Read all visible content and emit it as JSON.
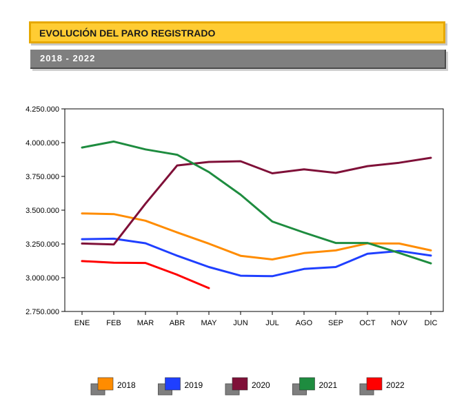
{
  "header": {
    "title": "EVOLUCIÓN DEL PARO REGISTRADO",
    "subtitle": "2018 - 2022"
  },
  "chart_data": {
    "type": "line",
    "title": "EVOLUCIÓN DEL PARO REGISTRADO",
    "subtitle": "2018 - 2022",
    "categories": [
      "ENE",
      "FEB",
      "MAR",
      "ABR",
      "MAY",
      "JUN",
      "JUL",
      "AGO",
      "SEP",
      "OCT",
      "NOV",
      "DIC"
    ],
    "ylim": [
      2750000,
      4250000
    ],
    "yticks": [
      2750000,
      3000000,
      3250000,
      3500000,
      3750000,
      4000000,
      4250000
    ],
    "ytick_labels": [
      "2.750.000",
      "3.000.000",
      "3.250.000",
      "3.500.000",
      "3.750.000",
      "4.000.000",
      "4.250.000"
    ],
    "grid": false,
    "legend_position": "bottom",
    "series": [
      {
        "name": "2018",
        "color": "#ff8c00",
        "values": [
          3476000,
          3471000,
          3422000,
          3335000,
          3252000,
          3162000,
          3135000,
          3182000,
          3202000,
          3254000,
          3253000,
          3202000
        ]
      },
      {
        "name": "2019",
        "color": "#1f3fff",
        "values": [
          3285000,
          3289000,
          3255000,
          3163000,
          3079000,
          3015000,
          3011000,
          3065000,
          3079000,
          3177000,
          3198000,
          3164000
        ]
      },
      {
        "name": "2020",
        "color": "#7f1038",
        "values": [
          3253000,
          3246000,
          3548000,
          3831000,
          3857000,
          3862000,
          3773000,
          3802000,
          3776000,
          3826000,
          3851000,
          3888000
        ]
      },
      {
        "name": "2021",
        "color": "#1e8c3f",
        "values": [
          3964000,
          4008000,
          3950000,
          3910000,
          3782000,
          3615000,
          3416000,
          3334000,
          3257000,
          3257000,
          3183000,
          3106000
        ]
      },
      {
        "name": "2022",
        "color": "#ff0000",
        "values": [
          3123000,
          3111000,
          3109000,
          3022000,
          2923000,
          null,
          null,
          null,
          null,
          null,
          null,
          null
        ]
      }
    ]
  }
}
